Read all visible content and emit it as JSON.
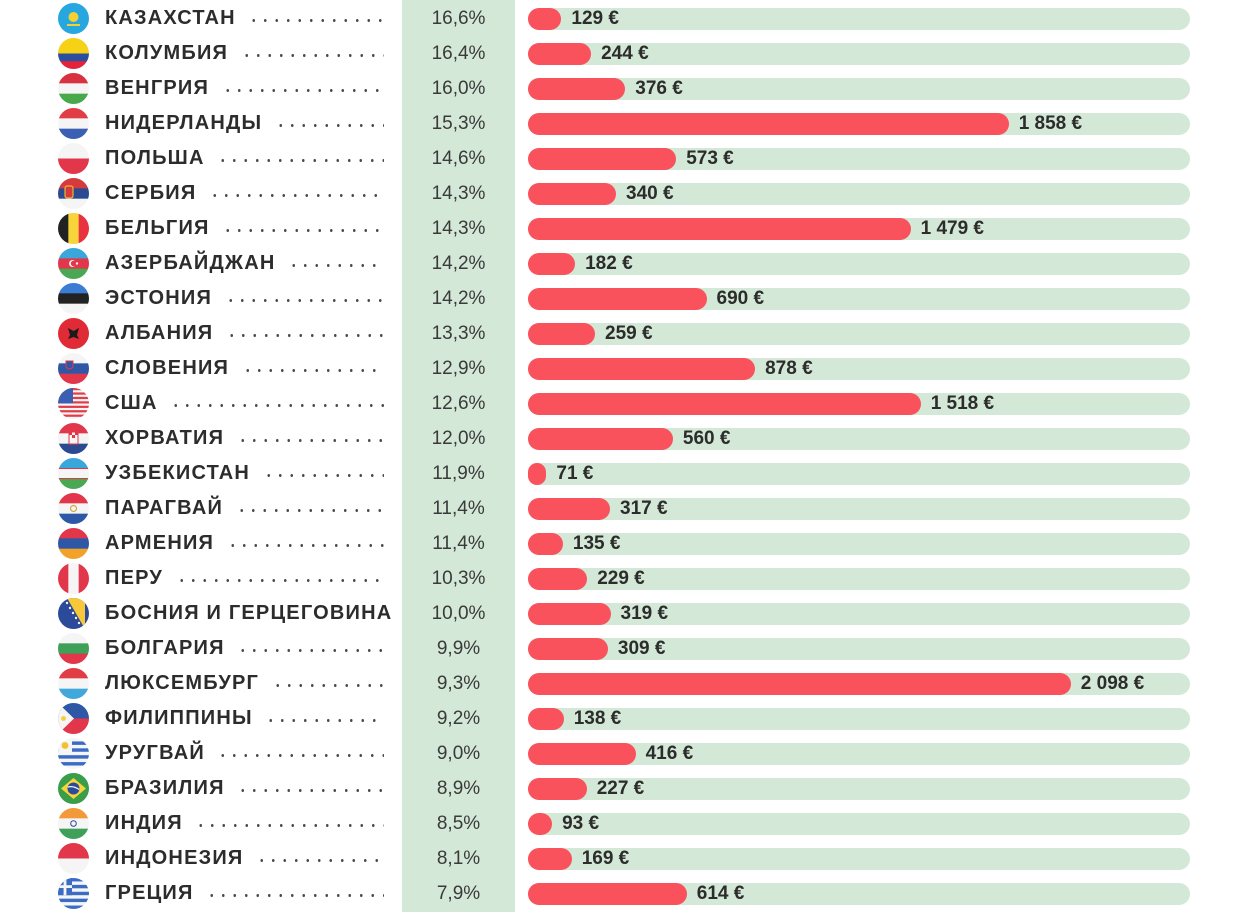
{
  "chart_data": {
    "type": "bar",
    "orientation": "horizontal",
    "currency": "€",
    "categories": [
      "КАЗАХСТАН",
      "КОЛУМБИЯ",
      "ВЕНГРИЯ",
      "НИДЕРЛАНДЫ",
      "ПОЛЬША",
      "СЕРБИЯ",
      "БЕЛЬГИЯ",
      "АЗЕРБАЙДЖАН",
      "ЭСТОНИЯ",
      "АЛБАНИЯ",
      "СЛОВЕНИЯ",
      "США",
      "ХОРВАТИЯ",
      "УЗБЕКИСТАН",
      "ПАРАГВАЙ",
      "АРМЕНИЯ",
      "ПЕРУ",
      "БОСНИЯ И ГЕРЦЕГОВИНА",
      "БОЛГАРИЯ",
      "ЛЮКСЕМБУРГ",
      "ФИЛИППИНЫ",
      "УРУГВАЙ",
      "БРАЗИЛИЯ",
      "ИНДИЯ",
      "ИНДОНЕЗИЯ",
      "ГРЕЦИЯ"
    ],
    "percent_labels": [
      "16,6%",
      "16,4%",
      "16,0%",
      "15,3%",
      "14,6%",
      "14,3%",
      "14,3%",
      "14,2%",
      "14,2%",
      "13,3%",
      "12,9%",
      "12,6%",
      "12,0%",
      "11,9%",
      "11,4%",
      "11,4%",
      "10,3%",
      "10,0%",
      "9,9%",
      "9,3%",
      "9,2%",
      "9,0%",
      "8,9%",
      "8,5%",
      "8,1%",
      "7,9%"
    ],
    "values": [
      129,
      244,
      376,
      1858,
      573,
      340,
      1479,
      182,
      690,
      259,
      878,
      1518,
      560,
      71,
      317,
      135,
      229,
      319,
      309,
      2098,
      138,
      416,
      227,
      93,
      169,
      614
    ],
    "value_labels": [
      "129 €",
      "244 €",
      "376 €",
      "1 858 €",
      "573 €",
      "340 €",
      "1 479 €",
      "182 €",
      "690 €",
      "259 €",
      "878 €",
      "1 518 €",
      "560 €",
      "71 €",
      "317 €",
      "135 €",
      "229 €",
      "319 €",
      "309 €",
      "2 098 €",
      "138 €",
      "416 €",
      "227 €",
      "93 €",
      "169 €",
      "614 €"
    ],
    "xlim": [
      0,
      2200
    ],
    "flags": [
      "kazakhstan-flag-icon",
      "colombia-flag-icon",
      "hungary-flag-icon",
      "netherlands-flag-icon",
      "poland-flag-icon",
      "serbia-flag-icon",
      "belgium-flag-icon",
      "azerbaijan-flag-icon",
      "estonia-flag-icon",
      "albania-flag-icon",
      "slovenia-flag-icon",
      "usa-flag-icon",
      "croatia-flag-icon",
      "uzbekistan-flag-icon",
      "paraguay-flag-icon",
      "armenia-flag-icon",
      "peru-flag-icon",
      "bosnia-flag-icon",
      "bulgaria-flag-icon",
      "luxembourg-flag-icon",
      "philippines-flag-icon",
      "uruguay-flag-icon",
      "brazil-flag-icon",
      "india-flag-icon",
      "indonesia-flag-icon",
      "greece-flag-icon"
    ],
    "colors": {
      "bar": "#fa525c",
      "track": "#d3e8d6",
      "percent_band": "#d3e8d6",
      "text": "#2c2c2c"
    },
    "grid": false,
    "legend": "none"
  }
}
